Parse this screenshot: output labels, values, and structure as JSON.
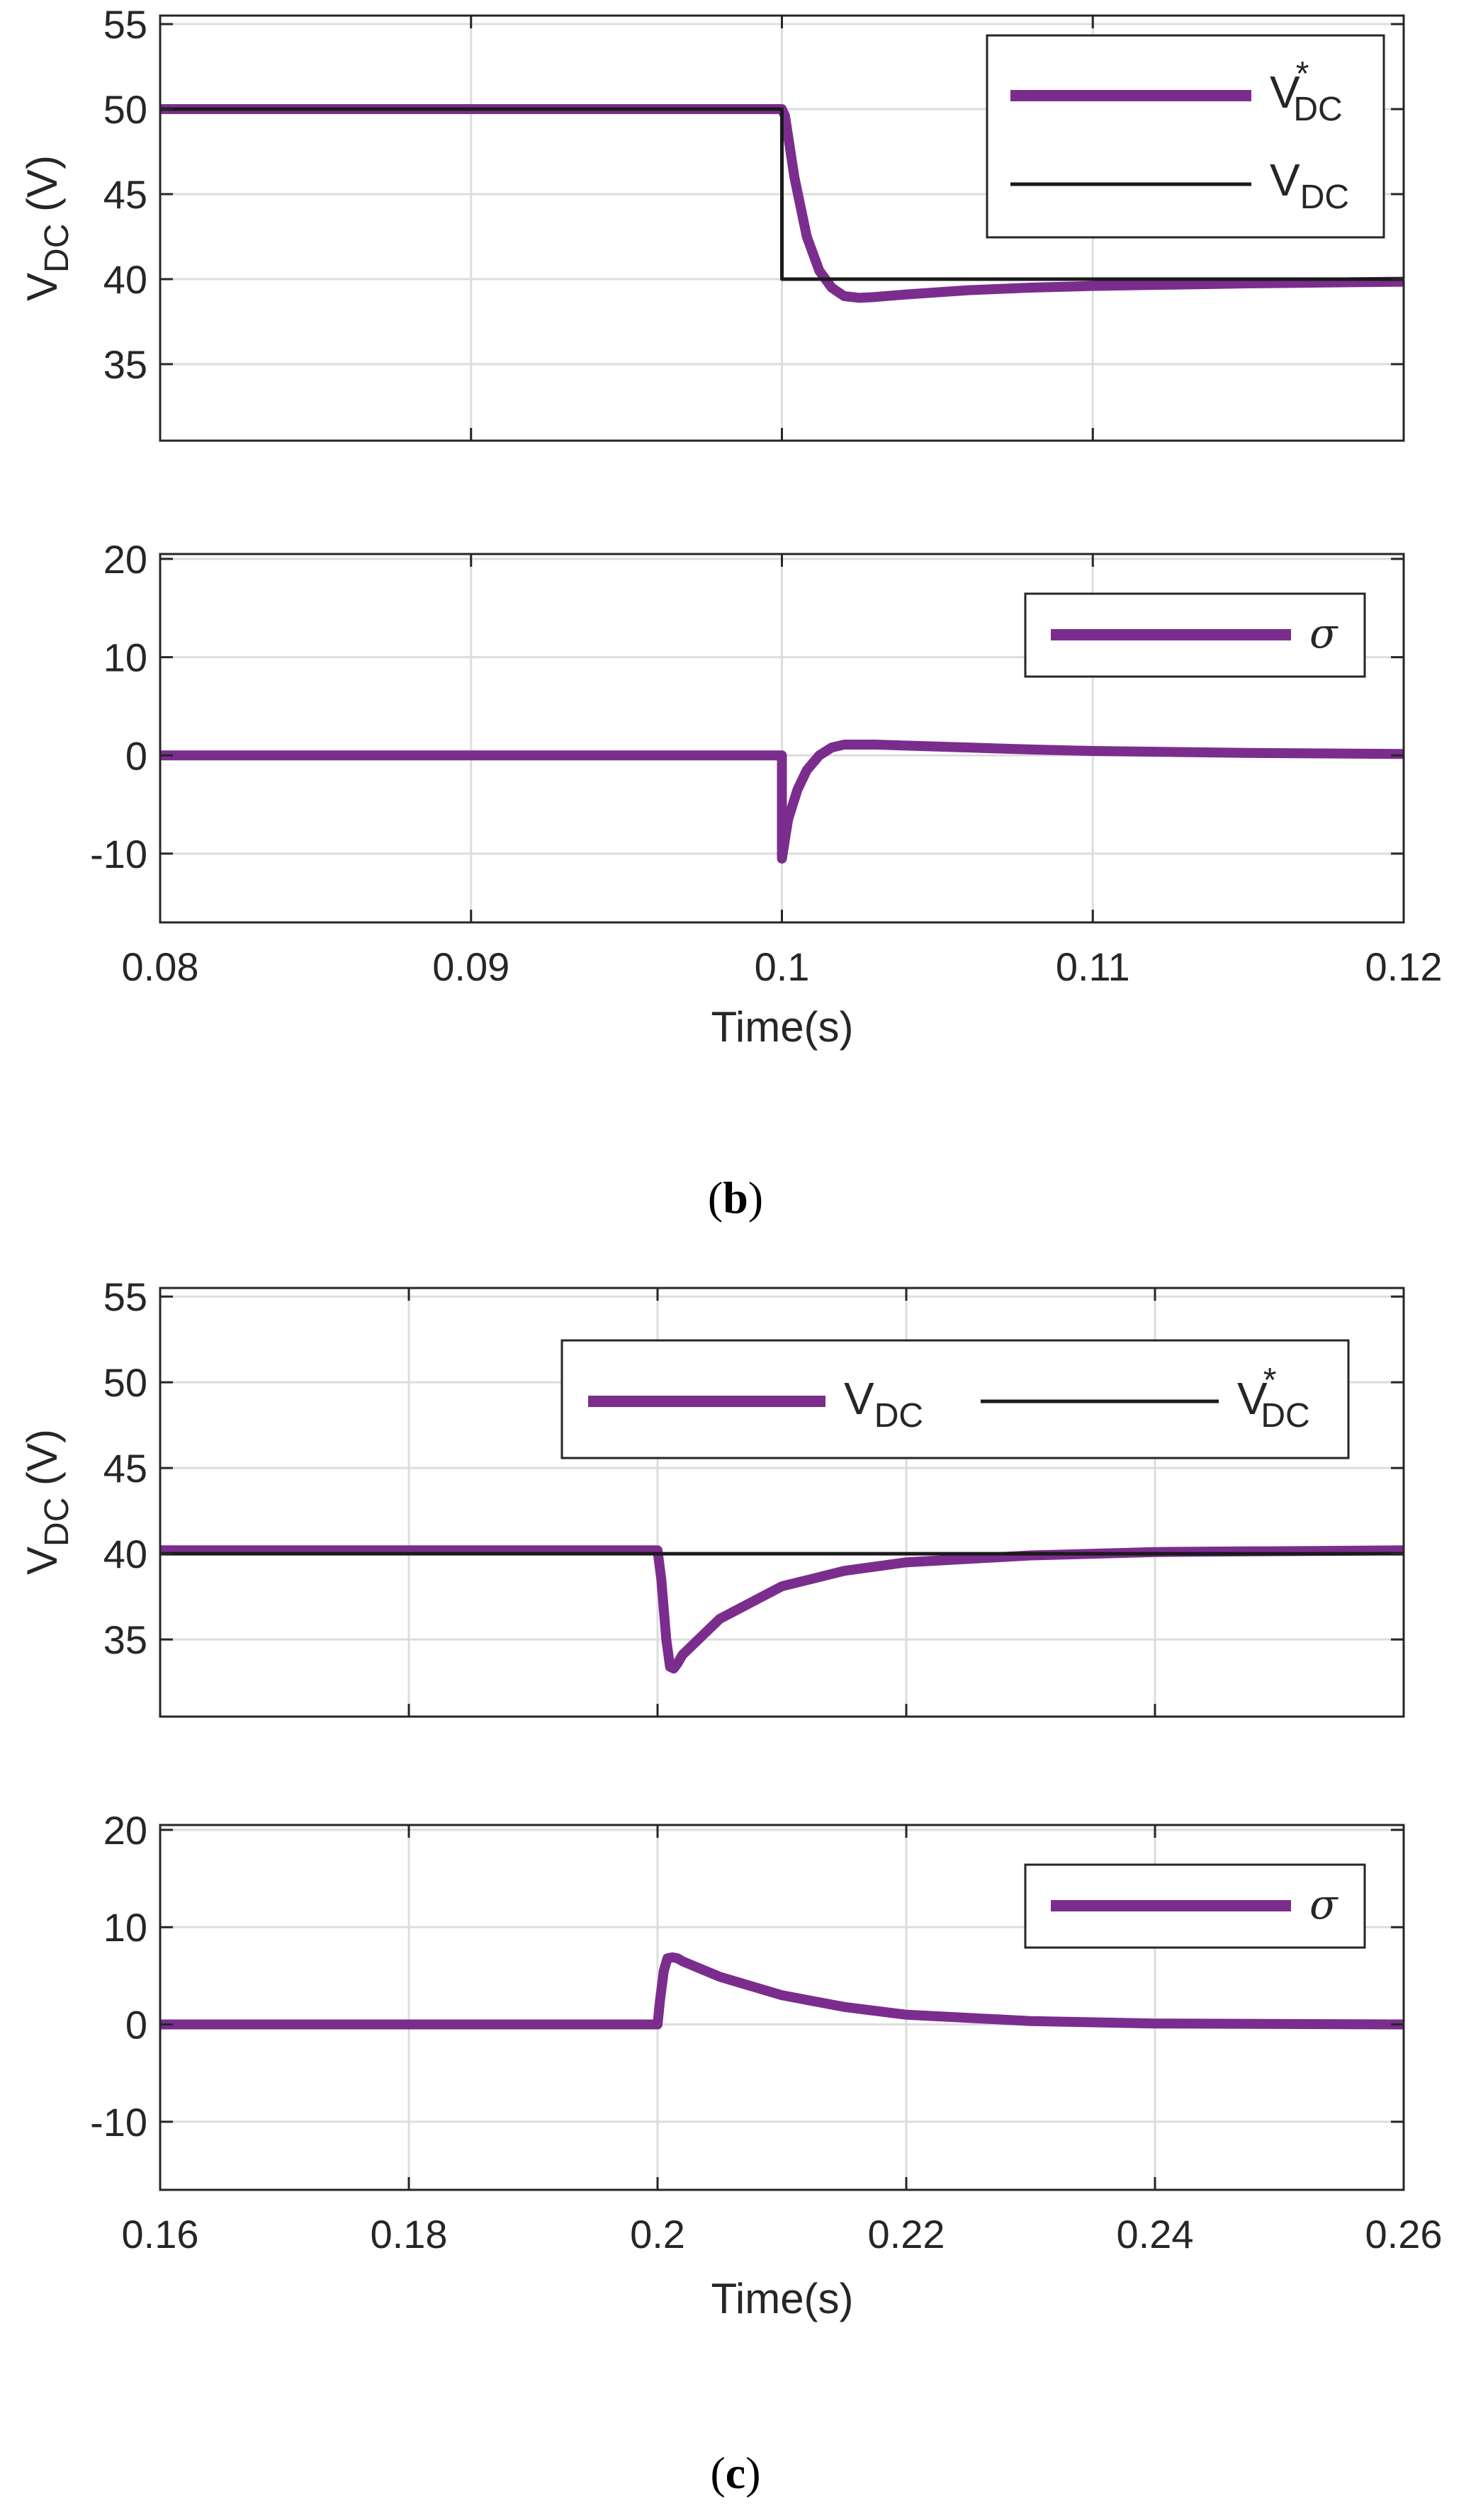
{
  "colors": {
    "vdc": "#7B2D8E",
    "ref": "#1A1A1A",
    "grid": "#DDDDDD",
    "axis": "#262626"
  },
  "chart_data": [
    {
      "type": "line",
      "panel": "b-top",
      "ylabel_main": "V",
      "ylabel_sub": "DC",
      "ylabel_unit": " (V)",
      "xlim": [
        0.08,
        0.12
      ],
      "ylim": [
        30.5,
        55.5
      ],
      "yticks": [
        "35",
        "40",
        "45",
        "50",
        "55"
      ],
      "ytick_values": [
        35,
        40,
        45,
        50,
        55
      ],
      "xtick_values": [
        0.08,
        0.09,
        0.1,
        0.11,
        0.12
      ],
      "grid": true,
      "legend_position": "top-right",
      "legend_layout": "vertical",
      "legend": [
        {
          "main": "V",
          "sub": "DC",
          "sup": "*",
          "series": "measured"
        },
        {
          "main": "V",
          "sub": "DC",
          "sup": "",
          "series": "reference"
        }
      ],
      "series": [
        {
          "name": "measured",
          "color": "#7B2D8E",
          "width": "thick",
          "x": [
            0.08,
            0.1,
            0.1001,
            0.1004,
            0.1008,
            0.1012,
            0.1016,
            0.102,
            0.1025,
            0.103,
            0.104,
            0.106,
            0.108,
            0.11,
            0.115,
            0.12
          ],
          "y": [
            50,
            50,
            49.6,
            46.0,
            42.5,
            40.5,
            39.5,
            39.0,
            38.9,
            38.95,
            39.1,
            39.35,
            39.5,
            39.6,
            39.75,
            39.85
          ]
        },
        {
          "name": "reference",
          "color": "#1A1A1A",
          "width": "thin",
          "x": [
            0.08,
            0.1,
            0.1,
            0.12
          ],
          "y": [
            50,
            50,
            40,
            40
          ]
        }
      ]
    },
    {
      "type": "line",
      "panel": "b-bottom",
      "xlim": [
        0.08,
        0.12
      ],
      "ylim": [
        -17,
        20.5
      ],
      "yticks": [
        "-10",
        "0",
        "10",
        "20"
      ],
      "ytick_values": [
        -10,
        0,
        10,
        20
      ],
      "xtick_values": [
        0.08,
        0.09,
        0.1,
        0.11,
        0.12
      ],
      "xticks": [
        "0.08",
        "0.09",
        "0.1",
        "0.11",
        "0.12"
      ],
      "xlabel": "Time(s)",
      "grid": true,
      "legend_position": "top-right",
      "legend": [
        {
          "main": "σ",
          "series": "sigma"
        }
      ],
      "series": [
        {
          "name": "sigma",
          "color": "#7B2D8E",
          "width": "thick",
          "x": [
            0.08,
            0.1,
            0.1,
            0.10005,
            0.1002,
            0.1005,
            0.1008,
            0.1012,
            0.1016,
            0.102,
            0.103,
            0.105,
            0.108,
            0.11,
            0.115,
            0.12
          ],
          "y": [
            0,
            0,
            -10.5,
            -9.5,
            -6.5,
            -3.5,
            -1.5,
            0.0,
            0.8,
            1.1,
            1.1,
            0.9,
            0.6,
            0.45,
            0.25,
            0.15
          ]
        }
      ]
    },
    {
      "type": "line",
      "panel": "c-top",
      "ylabel_main": "V",
      "ylabel_sub": "DC",
      "ylabel_unit": " (V)",
      "xlim": [
        0.16,
        0.26
      ],
      "ylim": [
        30.5,
        55.5
      ],
      "yticks": [
        "35",
        "40",
        "45",
        "50",
        "55"
      ],
      "ytick_values": [
        35,
        40,
        45,
        50,
        55
      ],
      "xtick_values": [
        0.16,
        0.18,
        0.2,
        0.22,
        0.24,
        0.26
      ],
      "grid": true,
      "legend_position": "top-right",
      "legend_layout": "horizontal",
      "legend": [
        {
          "main": "V",
          "sub": "DC",
          "sup": "",
          "series": "measured"
        },
        {
          "main": "V",
          "sub": "DC",
          "sup": "*",
          "series": "reference"
        }
      ],
      "series": [
        {
          "name": "measured",
          "color": "#7B2D8E",
          "width": "thick",
          "x": [
            0.16,
            0.2,
            0.2003,
            0.2007,
            0.201,
            0.2013,
            0.2016,
            0.202,
            0.205,
            0.21,
            0.215,
            0.22,
            0.23,
            0.24,
            0.26
          ],
          "y": [
            40.2,
            40.2,
            38.5,
            35.0,
            33.4,
            33.3,
            33.6,
            34.1,
            36.2,
            38.1,
            39.0,
            39.5,
            39.9,
            40.1,
            40.2
          ]
        },
        {
          "name": "reference",
          "color": "#1A1A1A",
          "width": "thin",
          "x": [
            0.16,
            0.26
          ],
          "y": [
            40,
            40
          ]
        }
      ]
    },
    {
      "type": "line",
      "panel": "c-bottom",
      "xlim": [
        0.16,
        0.26
      ],
      "ylim": [
        -17,
        20.5
      ],
      "yticks": [
        "-10",
        "0",
        "10",
        "20"
      ],
      "ytick_values": [
        -10,
        0,
        10,
        20
      ],
      "xtick_values": [
        0.16,
        0.18,
        0.2,
        0.22,
        0.24,
        0.26
      ],
      "xticks": [
        "0.16",
        "0.18",
        "0.2",
        "0.22",
        "0.24",
        "0.26"
      ],
      "xlabel": "Time(s)",
      "grid": true,
      "legend_position": "top-right",
      "legend": [
        {
          "main": "σ",
          "series": "sigma"
        }
      ],
      "series": [
        {
          "name": "sigma",
          "color": "#7B2D8E",
          "width": "thick",
          "x": [
            0.16,
            0.2,
            0.2002,
            0.2005,
            0.2008,
            0.2012,
            0.2016,
            0.202,
            0.205,
            0.21,
            0.215,
            0.22,
            0.23,
            0.24,
            0.26
          ],
          "y": [
            0,
            0,
            2.5,
            5.5,
            6.8,
            6.9,
            6.8,
            6.5,
            4.9,
            3.0,
            1.8,
            1.0,
            0.35,
            0.1,
            0.0
          ]
        }
      ]
    }
  ],
  "captions": {
    "b": "b",
    "c": "c",
    "open": "(",
    "close": ")"
  }
}
